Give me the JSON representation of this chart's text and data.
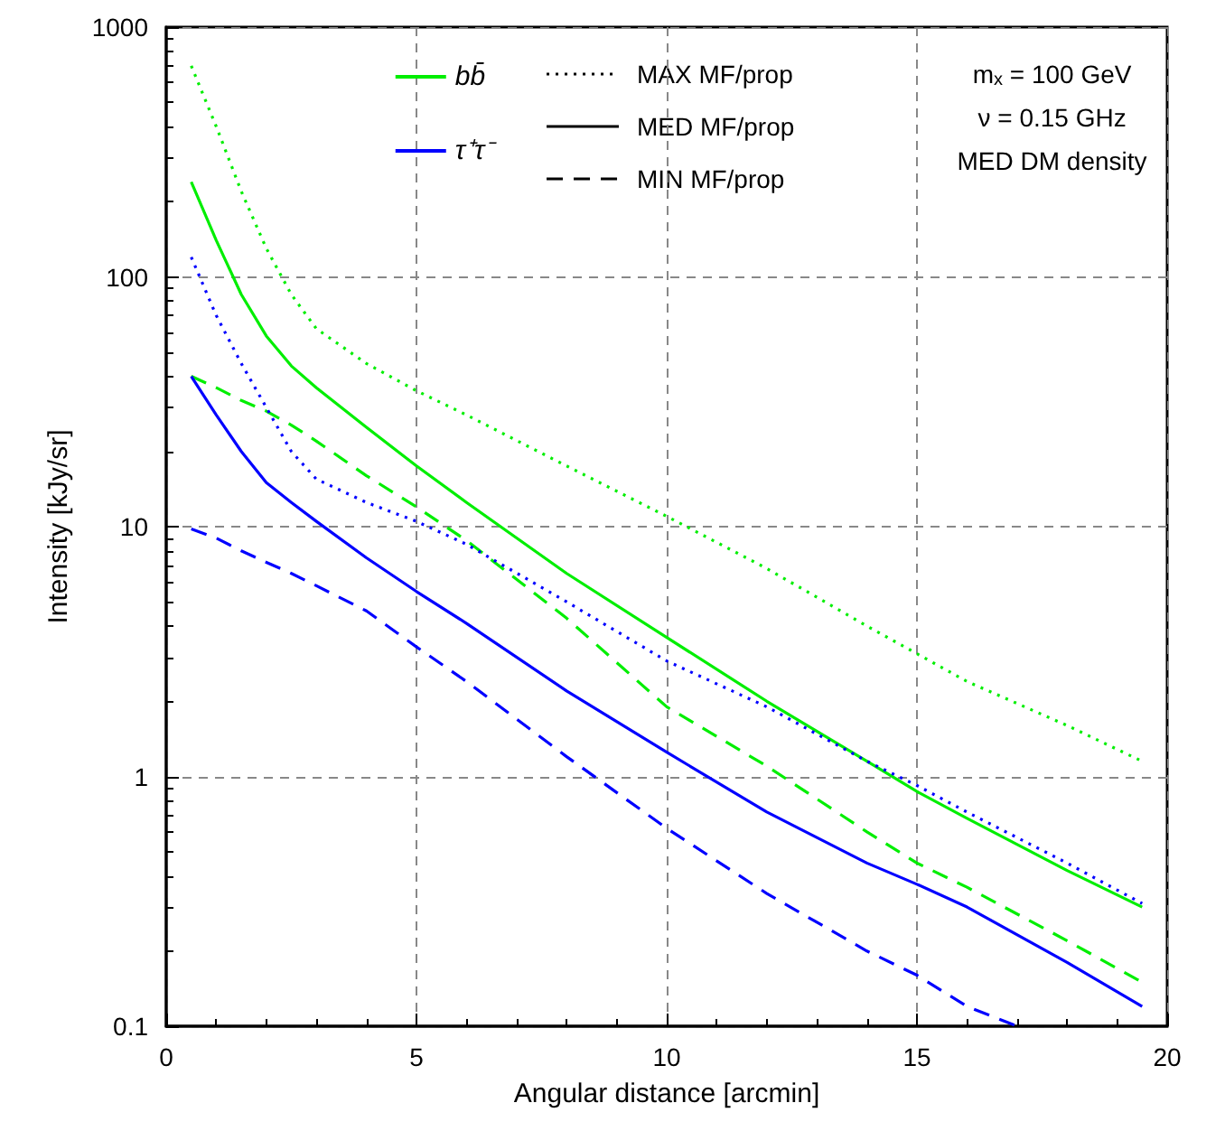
{
  "chart_data": {
    "type": "line",
    "xlabel": "Angular distance [arcmin]",
    "ylabel": "Intensity [kJy/sr]",
    "x": [
      0.5,
      1,
      1.5,
      2,
      2.5,
      3,
      4,
      5,
      6,
      8,
      10,
      12,
      14,
      15,
      16,
      18,
      19.5
    ],
    "xlim": [
      0,
      20
    ],
    "xticks": [
      0,
      5,
      10,
      15,
      20
    ],
    "ylim": [
      0.1,
      1000
    ],
    "yticks": [
      0.1,
      1,
      10,
      100,
      1000
    ],
    "log": "y",
    "grid": true,
    "legend": "top",
    "marker": "none",
    "series": [
      {
        "color": "#00ee00",
        "line_style": "dotted",
        "values": [
          700,
          400,
          220,
          130,
          85,
          62,
          45,
          35,
          28,
          17.5,
          11,
          6.8,
          4.0,
          3.1,
          2.4,
          1.6,
          1.15
        ]
      },
      {
        "name": "bb̄",
        "color": "#00ee00",
        "line_style": "solid",
        "values": [
          240,
          140,
          85,
          58,
          44,
          36,
          25,
          17.5,
          12.5,
          6.5,
          3.6,
          2.0,
          1.15,
          0.87,
          0.68,
          0.42,
          0.3
        ]
      },
      {
        "color": "#00ee00",
        "line_style": "dashed",
        "values": [
          40,
          36,
          32,
          29,
          25.5,
          22,
          16,
          12,
          8.8,
          4.3,
          1.9,
          1.1,
          0.6,
          0.45,
          0.36,
          0.22,
          0.15
        ]
      },
      {
        "color": "#0000ff",
        "line_style": "dotted",
        "values": [
          120,
          70,
          45,
          30,
          20,
          15.5,
          12.5,
          10.5,
          8.5,
          5,
          2.9,
          1.9,
          1.15,
          0.92,
          0.72,
          0.45,
          0.31
        ]
      },
      {
        "name": "τ⁺τ⁻",
        "color": "#0000ff",
        "line_style": "solid",
        "values": [
          40,
          28,
          20,
          15,
          12.5,
          10.5,
          7.5,
          5.5,
          4.1,
          2.2,
          1.25,
          0.72,
          0.45,
          0.37,
          0.3,
          0.18,
          0.12
        ]
      },
      {
        "color": "#0000ff",
        "line_style": "dashed",
        "x": [
          0.5,
          1,
          1.5,
          2,
          2.5,
          3,
          4,
          5,
          6,
          8,
          10,
          12,
          14,
          15,
          16,
          17
        ],
        "values": [
          9.8,
          9,
          8,
          7.2,
          6.5,
          5.8,
          4.6,
          3.3,
          2.4,
          1.2,
          0.62,
          0.34,
          0.2,
          0.16,
          0.12,
          0.1
        ]
      }
    ],
    "annotations": [
      "MAX MF/prop",
      "MED MF/prop",
      "MIN MF/prop",
      "m$_{x}$ = 100 GeV",
      "ν = 0.15 GHz",
      "MED DM density"
    ]
  }
}
